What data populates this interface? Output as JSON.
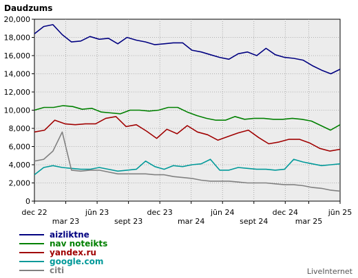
{
  "chart_data": {
    "type": "line",
    "title": "Daudzums",
    "ylim": [
      0,
      20000
    ],
    "yticks": [
      0,
      2000,
      4000,
      6000,
      8000,
      10000,
      12000,
      14000,
      16000,
      18000,
      20000
    ],
    "ytick_labels": [
      "0",
      "2,000",
      "4,000",
      "6,000",
      "8,000",
      "10,000",
      "12,000",
      "14,000",
      "16,000",
      "18,000",
      "20,000"
    ],
    "x_count": 40,
    "grid": true,
    "x_tick_labels": [
      {
        "index": 0,
        "label": "dec 22",
        "row": 0
      },
      {
        "index": 4,
        "label": "mar 23",
        "row": 1
      },
      {
        "index": 8,
        "label": "jūn 23",
        "row": 0
      },
      {
        "index": 12,
        "label": "sept 23",
        "row": 1
      },
      {
        "index": 16,
        "label": "dec 23",
        "row": 0
      },
      {
        "index": 20,
        "label": "mar 24",
        "row": 1
      },
      {
        "index": 24,
        "label": "jūn 24",
        "row": 0
      },
      {
        "index": 28,
        "label": "sept 24",
        "row": 1
      },
      {
        "index": 32,
        "label": "dec 24",
        "row": 0
      },
      {
        "index": 35,
        "label": "mar 25",
        "row": 1
      },
      {
        "index": 39,
        "label": "jūn 25",
        "row": 0
      }
    ],
    "series": [
      {
        "name": "aizliktne",
        "color": "#000080",
        "values": [
          18400,
          19200,
          19400,
          18300,
          17500,
          17600,
          18100,
          17800,
          17900,
          17300,
          18000,
          17700,
          17500,
          17200,
          17300,
          17400,
          17400,
          16600,
          16400,
          16100,
          15800,
          15600,
          16200,
          16400,
          16000,
          16800,
          16100,
          15800,
          15700,
          15500,
          14900,
          14400,
          14000,
          14500
        ]
      },
      {
        "name": "nav noteikts",
        "color": "#008000",
        "values": [
          10000,
          10300,
          10300,
          10500,
          10400,
          10100,
          10200,
          9800,
          9700,
          9600,
          10000,
          10000,
          9900,
          10000,
          10300,
          10300,
          9800,
          9400,
          9100,
          8900,
          8900,
          9300,
          9000,
          9100,
          9100,
          9000,
          9000,
          9100,
          9000,
          8800,
          8300,
          7800,
          8400
        ]
      },
      {
        "name": "yandex.ru",
        "color": "#a00000",
        "values": [
          7600,
          7800,
          8900,
          8500,
          8400,
          8500,
          8500,
          9100,
          9300,
          8200,
          8400,
          7700,
          6900,
          7900,
          7400,
          8300,
          7600,
          7300,
          6700,
          7100,
          7500,
          7800,
          7000,
          6300,
          6500,
          6800,
          6800,
          6400,
          5800,
          5500,
          5700
        ]
      },
      {
        "name": "google.com",
        "color": "#009999",
        "values": [
          2900,
          3700,
          3900,
          3700,
          3600,
          3500,
          3500,
          3700,
          3500,
          3300,
          3400,
          3500,
          4400,
          3800,
          3500,
          3900,
          3800,
          4000,
          4100,
          4600,
          3400,
          3400,
          3700,
          3600,
          3500,
          3500,
          3400,
          3500,
          4600,
          4300,
          4100,
          3900,
          4000,
          4100
        ]
      },
      {
        "name": "citi",
        "color": "#808080",
        "values": [
          4400,
          4600,
          5500,
          7600,
          3400,
          3300,
          3400,
          3400,
          3200,
          3000,
          3000,
          3000,
          3000,
          2900,
          2900,
          2700,
          2600,
          2500,
          2300,
          2200,
          2200,
          2200,
          2100,
          2000,
          2000,
          2000,
          1900,
          1800,
          1800,
          1700,
          1500,
          1400,
          1200,
          1100
        ]
      }
    ]
  },
  "watermark": "LiveInternet"
}
